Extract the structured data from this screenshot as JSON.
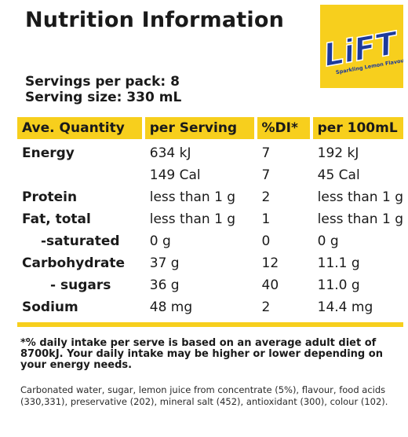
{
  "title": "Nutrition Information",
  "logo": {
    "brand": "LiFT",
    "tagline": "Sparkling Lemon Flavour",
    "background_color": "#f7cf1d",
    "text_color": "#1d3a9c"
  },
  "servings": {
    "per_pack": "Servings per pack: 8",
    "size": "Serving size: 330 mL"
  },
  "table": {
    "headers": [
      "Ave. Quantity",
      "per Serving",
      "%DI*",
      "per 100mL"
    ],
    "rows": [
      {
        "name": "Energy",
        "per_serving": "634 kJ",
        "di": "7",
        "per_100ml": "192 kJ"
      },
      {
        "name": "",
        "per_serving": "149 Cal",
        "di": "7",
        "per_100ml": "45 Cal"
      },
      {
        "name": "Protein",
        "per_serving": "less than 1 g",
        "di": "2",
        "per_100ml": "less than 1 g"
      },
      {
        "name": "Fat, total",
        "per_serving": "less than 1 g",
        "di": "1",
        "per_100ml": "less than 1 g"
      },
      {
        "name": "-saturated",
        "per_serving": "0 g",
        "di": "0",
        "per_100ml": "0 g"
      },
      {
        "name": "Carbohydrate",
        "per_serving": "37 g",
        "di": "12",
        "per_100ml": "11.1 g"
      },
      {
        "name": "- sugars",
        "per_serving": "36 g",
        "di": "40",
        "per_100ml": "11.0 g"
      },
      {
        "name": "Sodium",
        "per_serving": "48 mg",
        "di": "2",
        "per_100ml": "14.4 mg"
      }
    ]
  },
  "footnote": "*% daily intake per serve is based on an average adult diet of 8700kJ. Your daily intake may be higher or lower depending on your energy needs.",
  "ingredients": "Carbonated water, sugar, lemon juice from concentrate (5%), flavour, food acids (330,331), preservative (202), mineral salt (452), antioxidant (300), colour (102)."
}
